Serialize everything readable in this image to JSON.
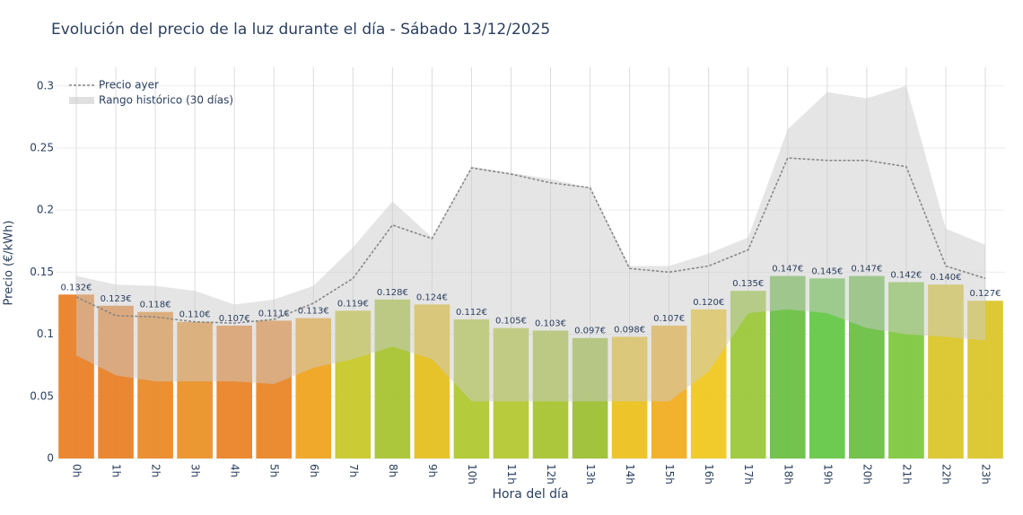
{
  "chart_data": {
    "type": "bar",
    "title": "Evolución del precio de la luz durante el día - Sábado 13/12/2025",
    "x_label": "Hora del día",
    "y_label": "Precio (€/kWh)",
    "categories": [
      "0h",
      "1h",
      "2h",
      "3h",
      "4h",
      "5h",
      "6h",
      "7h",
      "8h",
      "9h",
      "10h",
      "11h",
      "12h",
      "13h",
      "14h",
      "15h",
      "16h",
      "17h",
      "18h",
      "19h",
      "20h",
      "21h",
      "22h",
      "23h"
    ],
    "values": [
      0.132,
      0.123,
      0.118,
      0.11,
      0.107,
      0.111,
      0.113,
      0.119,
      0.128,
      0.124,
      0.112,
      0.105,
      0.103,
      0.097,
      0.098,
      0.107,
      0.12,
      0.135,
      0.147,
      0.145,
      0.147,
      0.142,
      0.14,
      0.127
    ],
    "value_labels": [
      "0.132€",
      "0.123€",
      "0.118€",
      "0.110€",
      "0.107€",
      "0.111€",
      "0.113€",
      "0.119€",
      "0.128€",
      "0.124€",
      "0.112€",
      "0.105€",
      "0.103€",
      "0.097€",
      "0.098€",
      "0.107€",
      "0.120€",
      "0.135€",
      "0.147€",
      "0.145€",
      "0.147€",
      "0.142€",
      "0.140€",
      "0.127€"
    ],
    "colors": [
      "#ea8128",
      "#ea8128",
      "#ea8a28",
      "#ea9228",
      "#ea8428",
      "#ea8628",
      "#f0a420",
      "#c8c82a",
      "#a8c432",
      "#e6c020",
      "#b0c832",
      "#b4c832",
      "#a8c432",
      "#9cc034",
      "#ecc220",
      "#f2ae22",
      "#f0c820",
      "#9cc83a",
      "#6cc044",
      "#66c848",
      "#6cc044",
      "#80c840",
      "#dac62a",
      "#dac62a"
    ],
    "line": {
      "name": "Precio ayer",
      "color": "#888888",
      "values": [
        0.13,
        0.115,
        0.114,
        0.11,
        0.109,
        0.112,
        0.125,
        0.145,
        0.188,
        0.177,
        0.234,
        0.229,
        0.222,
        0.218,
        0.153,
        0.15,
        0.155,
        0.168,
        0.242,
        0.24,
        0.24,
        0.235,
        0.155,
        0.145
      ]
    },
    "range": {
      "name": "Rango histórico (30 días)",
      "color": "#cccccc",
      "upper": [
        0.147,
        0.14,
        0.139,
        0.135,
        0.124,
        0.128,
        0.139,
        0.17,
        0.207,
        0.178,
        0.235,
        0.23,
        0.225,
        0.218,
        0.155,
        0.155,
        0.165,
        0.178,
        0.265,
        0.295,
        0.29,
        0.3,
        0.185,
        0.172
      ],
      "lower": [
        0.083,
        0.067,
        0.062,
        0.062,
        0.062,
        0.06,
        0.073,
        0.08,
        0.09,
        0.08,
        0.046,
        0.046,
        0.046,
        0.046,
        0.046,
        0.046,
        0.07,
        0.117,
        0.12,
        0.117,
        0.105,
        0.1,
        0.098,
        0.095
      ]
    },
    "ylim": [
      0,
      0.315
    ],
    "yticks": [
      0,
      0.05,
      0.1,
      0.15,
      0.2,
      0.25,
      0.3
    ],
    "grid": true,
    "legend": "top-left"
  }
}
